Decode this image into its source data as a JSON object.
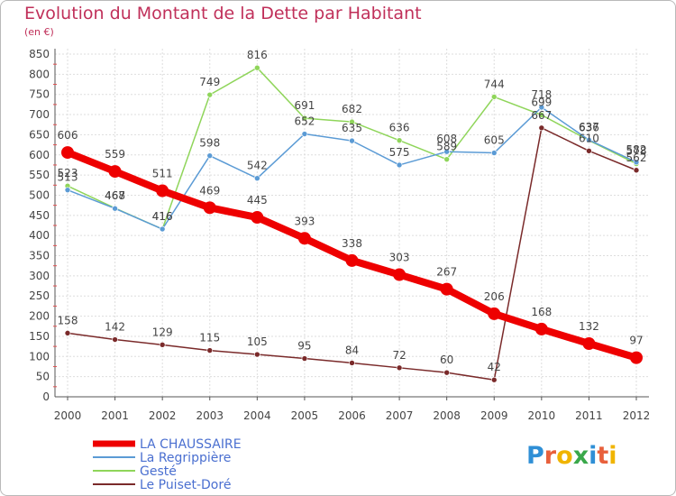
{
  "title": "Evolution du Montant de la Dette par Habitant",
  "subtitle": "(en €)",
  "logo": {
    "letters": [
      "P",
      "r",
      "o",
      "x",
      "i",
      "t",
      "i"
    ],
    "colors": [
      "#2f8fd6",
      "#e8603c",
      "#f0b400",
      "#3aa84a",
      "#2f8fd6",
      "#e8603c",
      "#f0b400"
    ]
  },
  "chart_data": {
    "type": "line",
    "x": [
      "2000",
      "2001",
      "2002",
      "2003",
      "2004",
      "2005",
      "2006",
      "2007",
      "2008",
      "2009",
      "2010",
      "2011",
      "2012"
    ],
    "ylim": [
      0,
      850
    ],
    "yticks": [
      0,
      50,
      100,
      150,
      200,
      250,
      300,
      350,
      400,
      450,
      500,
      550,
      600,
      650,
      700,
      750,
      800,
      850
    ],
    "grid": true,
    "legend_position": "bottom-left",
    "series": [
      {
        "name": "LA CHAUSSAIRE",
        "color": "#ee0000",
        "values": [
          606,
          559,
          511,
          469,
          445,
          393,
          338,
          303,
          267,
          206,
          168,
          132,
          97
        ]
      },
      {
        "name": "La Regrippière",
        "color": "#5b9bd5",
        "values": [
          513,
          467,
          416,
          598,
          542,
          652,
          635,
          575,
          608,
          605,
          718,
          637,
          582
        ]
      },
      {
        "name": "Gesté",
        "color": "#8fd55a",
        "values": [
          523,
          468,
          416,
          749,
          816,
          691,
          682,
          636,
          589,
          744,
          699,
          636,
          578
        ]
      },
      {
        "name": "Le Puiset-Doré",
        "color": "#7a2a2a",
        "values": [
          158,
          142,
          129,
          115,
          105,
          95,
          84,
          72,
          60,
          42,
          667,
          610,
          562
        ]
      }
    ]
  }
}
